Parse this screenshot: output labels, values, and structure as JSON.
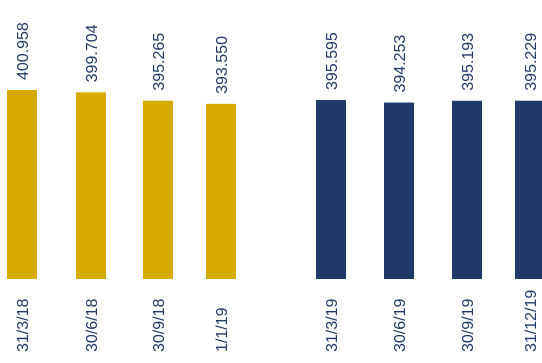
{
  "chart_data": {
    "type": "bar",
    "categories": [
      "31/3/18",
      "30/6/18",
      "30/9/18",
      "1/1/19",
      "31/3/19",
      "30/6/19",
      "30/9/19",
      "31/12/19"
    ],
    "values": [
      400.958,
      399.704,
      395.265,
      393.55,
      395.595,
      394.253,
      395.193,
      395.229
    ],
    "value_labels": [
      "400.958",
      "399.704",
      "395.265",
      "393.550",
      "395.595",
      "394.253",
      "395.193",
      "395.229"
    ],
    "groups": [
      {
        "color": "#d6aa00",
        "indices": [
          0,
          1,
          2,
          3
        ]
      },
      {
        "color": "#1f3a68",
        "indices": [
          4,
          5,
          6,
          7
        ]
      }
    ],
    "ylim": [
      300,
      400.958
    ],
    "grid": false,
    "label_color": "#1f3a68",
    "title": "",
    "xlabel": "",
    "ylabel": ""
  }
}
